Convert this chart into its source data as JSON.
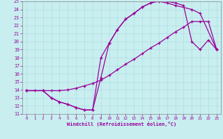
{
  "xlabel": "Windchill (Refroidissement éolien,°C)",
  "bg_color": "#c8eef0",
  "line_color": "#990099",
  "grid_color": "#b0dde0",
  "xlim": [
    -0.5,
    23.5
  ],
  "ylim": [
    11,
    25
  ],
  "xticks": [
    0,
    1,
    2,
    3,
    4,
    5,
    6,
    7,
    8,
    9,
    10,
    11,
    12,
    13,
    14,
    15,
    16,
    17,
    18,
    19,
    20,
    21,
    22,
    23
  ],
  "yticks": [
    11,
    12,
    13,
    14,
    15,
    16,
    17,
    18,
    19,
    20,
    21,
    22,
    23,
    24,
    25
  ],
  "series1_x": [
    0,
    1,
    2,
    3,
    4,
    5,
    6,
    7,
    8,
    9,
    10,
    11,
    12,
    13,
    14,
    15,
    16,
    17,
    18,
    19,
    20,
    21,
    22,
    23
  ],
  "series1_y": [
    13.9,
    13.9,
    13.9,
    13.9,
    13.9,
    14.0,
    14.2,
    14.5,
    14.8,
    15.2,
    15.8,
    16.5,
    17.2,
    17.8,
    18.5,
    19.2,
    19.8,
    20.5,
    21.2,
    21.8,
    22.5,
    22.5,
    22.5,
    19.0
  ],
  "series2_x": [
    0,
    2,
    3,
    4,
    5,
    6,
    7,
    8,
    9,
    10,
    11,
    12,
    13,
    14,
    15,
    16,
    17,
    18,
    19,
    20,
    21,
    22,
    23
  ],
  "series2_y": [
    13.9,
    13.9,
    13.0,
    12.5,
    12.2,
    11.8,
    11.5,
    11.5,
    15.5,
    19.8,
    21.5,
    22.8,
    23.5,
    24.3,
    24.8,
    25.2,
    25.0,
    24.8,
    24.5,
    20.0,
    19.0,
    20.2,
    19.0
  ],
  "series3_x": [
    0,
    2,
    3,
    4,
    5,
    6,
    7,
    8,
    9,
    10,
    11,
    12,
    13,
    14,
    15,
    16,
    17,
    18,
    20,
    21,
    23
  ],
  "series3_y": [
    13.9,
    13.9,
    13.0,
    12.5,
    12.2,
    11.8,
    11.5,
    11.5,
    18.0,
    19.8,
    21.5,
    22.8,
    23.5,
    24.3,
    24.8,
    25.0,
    24.8,
    24.5,
    24.0,
    23.5,
    19.0
  ]
}
